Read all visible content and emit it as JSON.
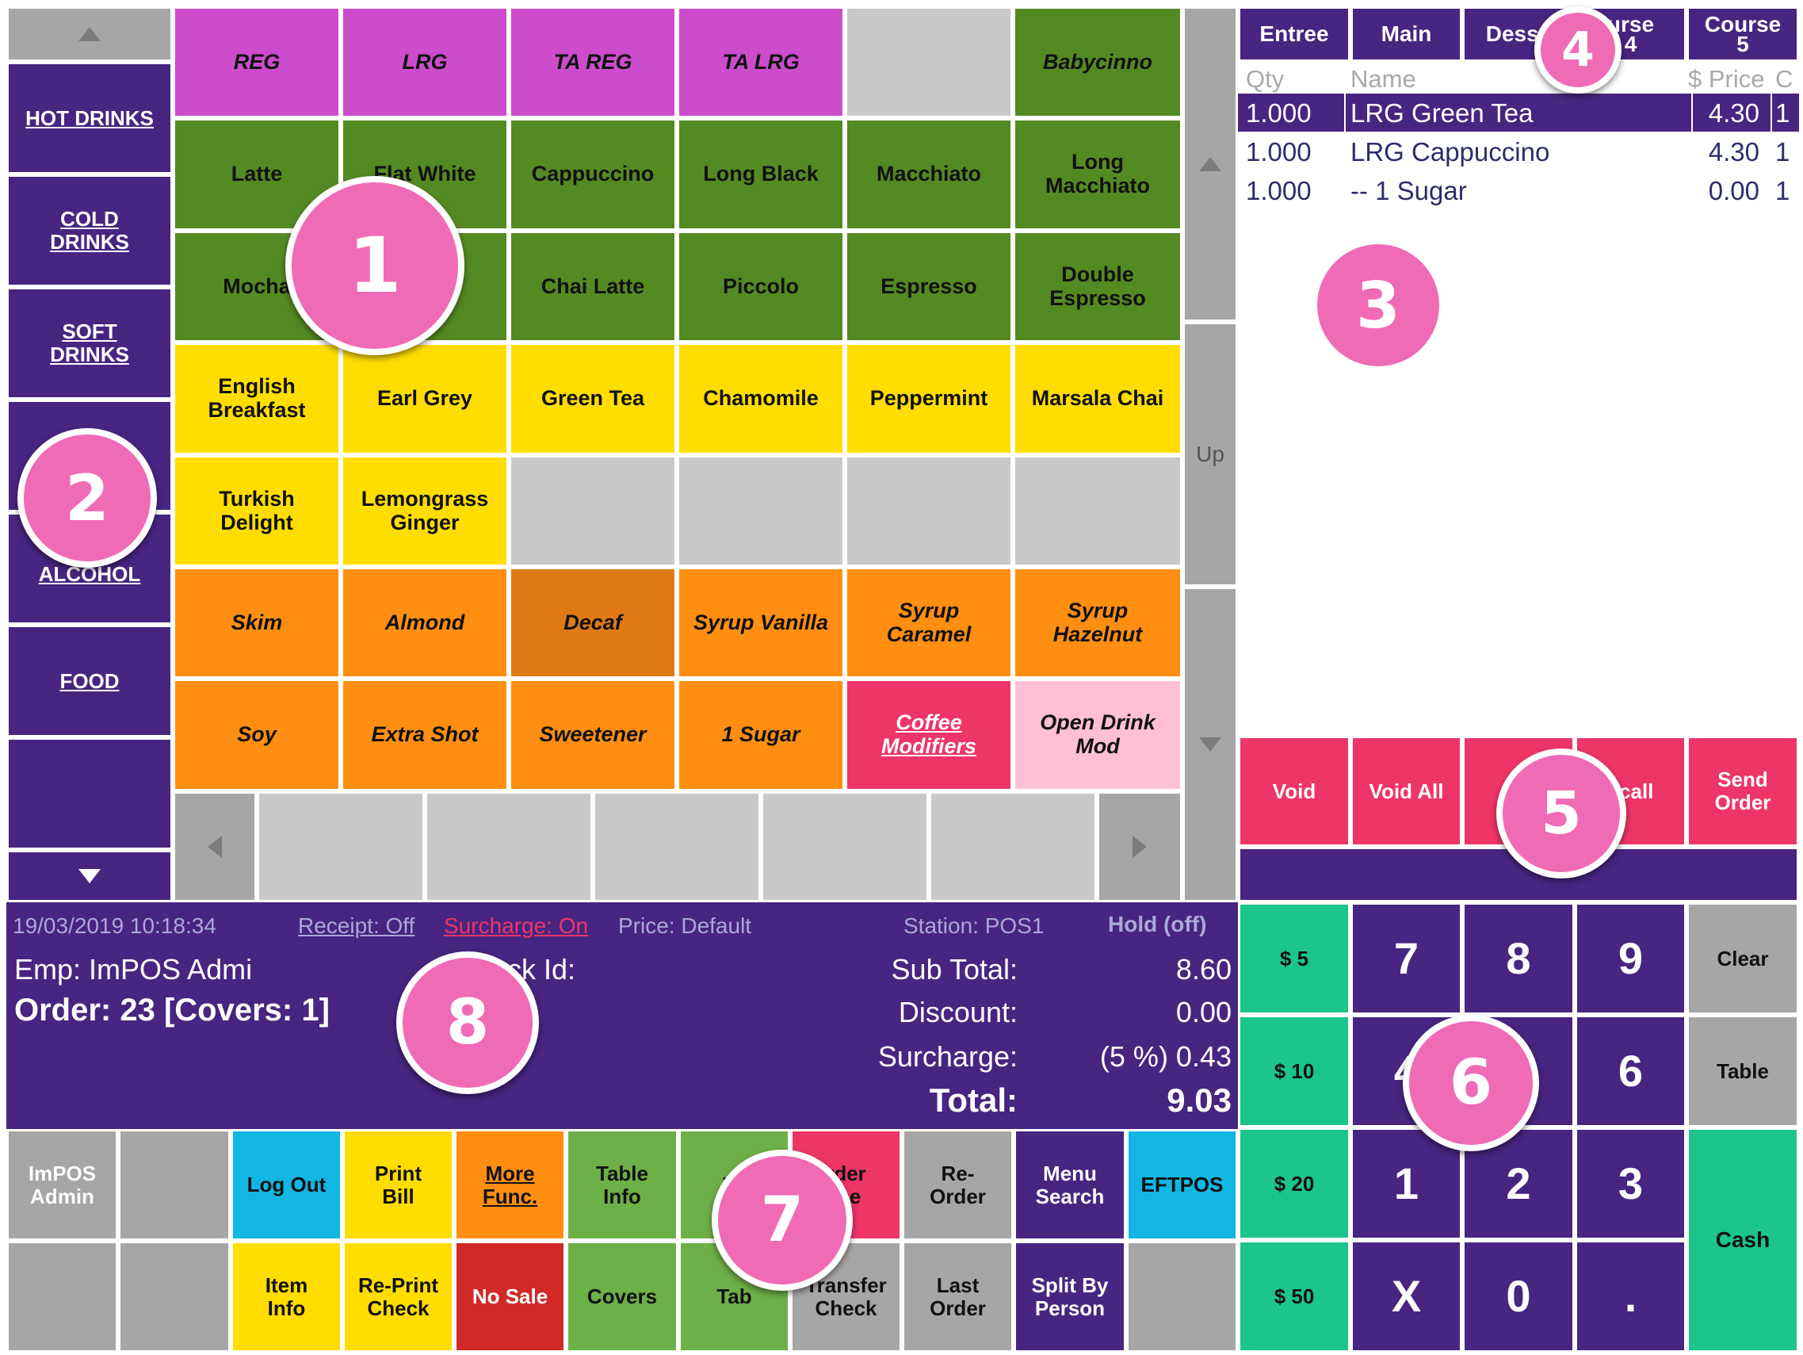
{
  "categories": [
    "HOT DRINKS",
    "COLD\nDRINKS",
    "SOFT\nDRINKS",
    "ALCOHOL",
    "FOOD"
  ],
  "menu_rows": [
    [
      "REG",
      "LRG",
      "TA REG",
      "TA LRG",
      "",
      "Babycinno"
    ],
    [
      "Latte",
      "Flat White",
      "Cappuccino",
      "Long Black",
      "Macchiato",
      "Long\nMacchiato"
    ],
    [
      "Mocha",
      "",
      "Chai Latte",
      "Piccolo",
      "Espresso",
      "Double\nEspresso"
    ],
    [
      "English\nBreakfast",
      "Earl Grey",
      "Green Tea",
      "Chamomile",
      "Peppermint",
      "Marsala Chai"
    ],
    [
      "Turkish\nDelight",
      "Lemongrass\nGinger",
      "",
      "",
      "",
      ""
    ],
    [
      "Skim",
      "Almond",
      "Decaf",
      "Syrup Vanilla",
      "Syrup\nCaramel",
      "Syrup\nHazelnut"
    ],
    [
      "Soy",
      "Extra Shot",
      "Sweetener",
      "1 Sugar",
      "Coffee\nModifiers",
      "Open Drink\nMod"
    ]
  ],
  "scroll": {
    "up_label": "Up"
  },
  "courses": [
    "Entree",
    "Main",
    "Desse",
    "urse\n4",
    "Course\n5"
  ],
  "order_columns": {
    "qty": "Qty",
    "name": "Name",
    "price": "$ Price",
    "c": "C"
  },
  "order_items": [
    {
      "qty": "1.000",
      "name": "LRG Green Tea",
      "price": "4.30",
      "c": "1",
      "selected": true
    },
    {
      "qty": "1.000",
      "name": "LRG Cappuccino",
      "price": "4.30",
      "c": "1",
      "selected": false
    },
    {
      "qty": "1.000",
      "name": "-- 1 Sugar",
      "price": "0.00",
      "c": "1",
      "selected": false
    }
  ],
  "actions": [
    "Void",
    "Void All",
    "Ca",
    "ecall",
    "Send\nOrder"
  ],
  "status": {
    "datetime": "19/03/2019 10:18:34",
    "receipt": "Receipt: Off",
    "surcharge_status": "Surcharge: On",
    "price": "Price: Default",
    "station": "Station: POS1",
    "hold": "Hold (off)",
    "employee": "Emp:  ImPOS Admi",
    "check_id": "eck Id:",
    "order": "Order: 23 [Covers:  1]",
    "labels": {
      "subtotal": "Sub Total:",
      "discount": "Discount:",
      "surcharge": "Surcharge:",
      "total": "Total:"
    },
    "values": {
      "subtotal": "8.60",
      "discount": "0.00",
      "surcharge": "(5 %) 0.43",
      "total": "9.03"
    }
  },
  "function_row1": [
    "ImPOS\nAdmin",
    "",
    "Log Out",
    "Print\nBill",
    "More\nFunc.",
    "Table\nInfo",
    "Ta",
    "rder\nme",
    "Re-\nOrder",
    "Menu\nSearch",
    "EFTPOS"
  ],
  "function_row2": [
    "",
    "",
    "Item\nInfo",
    "Re-Print\nCheck",
    "No Sale",
    "Covers",
    "Tab",
    "Transfer\nCheck",
    "Last\nOrder",
    "Split By\nPerson",
    ""
  ],
  "keypad": {
    "money": [
      "$ 5",
      "$ 10",
      "$ 20",
      "$ 50"
    ],
    "rows": [
      [
        "7",
        "8",
        "9"
      ],
      [
        "4",
        "5",
        "6"
      ],
      [
        "1",
        "2",
        "3"
      ],
      [
        "X",
        "0",
        "."
      ]
    ],
    "clear": "Clear",
    "table": "Table",
    "cash": "Cash"
  },
  "markers": [
    "1",
    "2",
    "3",
    "4",
    "5",
    "6",
    "7",
    "8"
  ],
  "colors": {
    "purple": "#472580",
    "magenta": "#cc4ccc",
    "green": "#548a22",
    "yellow": "#ffdd00",
    "orange": "#ff8e12",
    "dark_orange": "#e07a14",
    "pink_red": "#ee3567",
    "light_pink": "#ffbfd6",
    "teal": "#1cc58a",
    "cyan": "#12b6e3",
    "light_green": "#6eb048",
    "red": "#d12a26",
    "grey": "#a6a6a6",
    "marker_pink": "#f06bb5"
  }
}
